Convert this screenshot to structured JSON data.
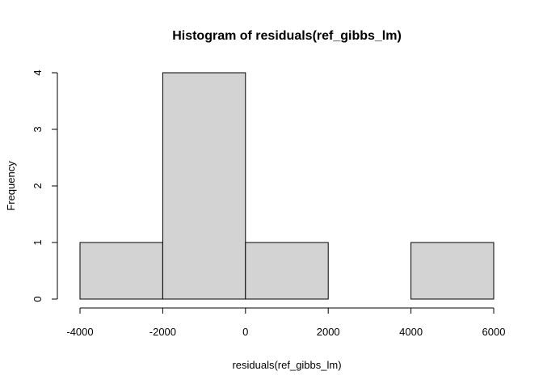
{
  "chart_data": {
    "type": "bar",
    "title": "Histogram of residuals(ref_gibbs_lm)",
    "xlabel": "residuals(ref_gibbs_lm)",
    "ylabel": "Frequency",
    "bin_edges": [
      -4000,
      -2000,
      0,
      2000,
      4000,
      6000
    ],
    "values": [
      1,
      4,
      1,
      0,
      1
    ],
    "xlim": [
      -4000,
      6000
    ],
    "ylim": [
      0,
      4
    ],
    "x_ticks": [
      -4000,
      -2000,
      0,
      2000,
      4000,
      6000
    ],
    "x_tick_labels": [
      "-4000",
      "-2000",
      "0",
      "2000",
      "4000",
      "6000"
    ],
    "y_ticks": [
      0,
      1,
      2,
      3,
      4
    ],
    "y_tick_labels": [
      "0",
      "1",
      "2",
      "3",
      "4"
    ],
    "bar_color": "#d3d3d3",
    "edge_color": "#000000",
    "grid": false,
    "legend": "none"
  }
}
